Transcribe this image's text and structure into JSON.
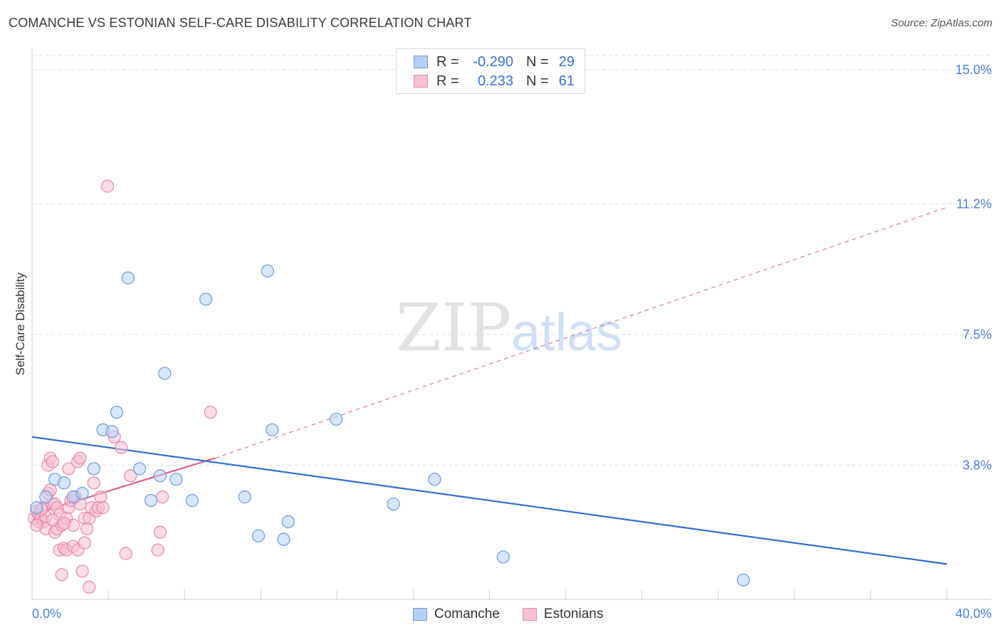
{
  "title": "COMANCHE VS ESTONIAN SELF-CARE DISABILITY CORRELATION CHART",
  "source": "Source: ZipAtlas.com",
  "watermark": {
    "zip": "ZIP",
    "atlas": "atlas"
  },
  "legend": {
    "comanche": {
      "r_label": "R =",
      "r_value": "-0.290",
      "n_label": "N =",
      "n_value": "29"
    },
    "estonians": {
      "r_label": "R =",
      "r_value": "0.233",
      "n_label": "N =",
      "n_value": "61"
    }
  },
  "bottom_legend": {
    "comanche": "Comanche",
    "estonians": "Estonians"
  },
  "colors": {
    "comanche_fill": "#b7d1f5",
    "comanche_stroke": "#6b9be0",
    "comanche_line": "#2f6fd0",
    "estonians_fill": "#f8c0d2",
    "estonians_stroke": "#e889a8",
    "estonians_line": "#e0608a",
    "grid": "#dcdcdc",
    "tick_text": "#4a7fd4"
  },
  "chart_data": {
    "type": "scatter",
    "title": "COMANCHE VS ESTONIAN SELF-CARE DISABILITY CORRELATION CHART",
    "xlabel": "",
    "ylabel": "Self-Care Disability",
    "xlim": [
      0,
      40
    ],
    "ylim": [
      0,
      15.6
    ],
    "x_tick_labels": [
      "0.0%",
      "40.0%"
    ],
    "y_ticks": [
      3.8,
      7.5,
      11.2,
      15.0
    ],
    "y_tick_labels": [
      "3.8%",
      "7.5%",
      "11.2%",
      "15.0%"
    ],
    "series": [
      {
        "name": "Comanche",
        "R": -0.29,
        "N": 29,
        "points": [
          [
            0.2,
            2.6
          ],
          [
            0.6,
            2.9
          ],
          [
            1.0,
            3.4
          ],
          [
            1.4,
            3.3
          ],
          [
            1.8,
            2.9
          ],
          [
            2.2,
            3.0
          ],
          [
            2.7,
            3.7
          ],
          [
            3.1,
            4.8
          ],
          [
            3.5,
            4.75
          ],
          [
            3.7,
            5.3
          ],
          [
            4.2,
            9.1
          ],
          [
            4.7,
            3.7
          ],
          [
            5.2,
            2.8
          ],
          [
            5.6,
            3.5
          ],
          [
            5.8,
            6.4
          ],
          [
            6.3,
            3.4
          ],
          [
            7.0,
            2.8
          ],
          [
            7.6,
            8.5
          ],
          [
            9.3,
            2.9
          ],
          [
            9.9,
            1.8
          ],
          [
            10.3,
            9.3
          ],
          [
            10.5,
            4.8
          ],
          [
            11.0,
            1.7
          ],
          [
            11.2,
            2.2
          ],
          [
            13.3,
            5.1
          ],
          [
            15.8,
            2.7
          ],
          [
            17.6,
            3.4
          ],
          [
            20.6,
            1.2
          ],
          [
            31.1,
            0.55
          ]
        ],
        "trend": {
          "x0": 0,
          "y0": 4.6,
          "x1": 40,
          "y1": 1.0
        }
      },
      {
        "name": "Estonians",
        "R": 0.233,
        "N": 61,
        "points": [
          [
            0.1,
            2.3
          ],
          [
            0.2,
            2.5
          ],
          [
            0.3,
            2.2
          ],
          [
            0.3,
            2.4
          ],
          [
            0.4,
            2.3
          ],
          [
            0.5,
            2.6
          ],
          [
            0.5,
            2.2
          ],
          [
            0.6,
            2.0
          ],
          [
            0.6,
            2.35
          ],
          [
            0.7,
            3.0
          ],
          [
            0.7,
            3.8
          ],
          [
            0.8,
            4.0
          ],
          [
            0.8,
            3.1
          ],
          [
            0.9,
            3.9
          ],
          [
            0.9,
            2.7
          ],
          [
            1.0,
            2.7
          ],
          [
            1.0,
            1.9
          ],
          [
            1.1,
            2.0
          ],
          [
            1.1,
            2.6
          ],
          [
            1.2,
            2.4
          ],
          [
            1.2,
            1.4
          ],
          [
            1.3,
            2.1
          ],
          [
            1.3,
            0.7
          ],
          [
            1.4,
            1.45
          ],
          [
            1.5,
            1.4
          ],
          [
            1.5,
            2.3
          ],
          [
            1.6,
            3.7
          ],
          [
            1.6,
            2.6
          ],
          [
            1.7,
            2.8
          ],
          [
            1.8,
            2.1
          ],
          [
            1.8,
            1.5
          ],
          [
            1.9,
            2.9
          ],
          [
            2.0,
            3.9
          ],
          [
            2.0,
            1.4
          ],
          [
            2.1,
            4.0
          ],
          [
            2.1,
            2.7
          ],
          [
            2.2,
            0.8
          ],
          [
            2.3,
            1.6
          ],
          [
            2.3,
            2.3
          ],
          [
            2.4,
            2.0
          ],
          [
            2.5,
            2.3
          ],
          [
            2.5,
            0.35
          ],
          [
            2.6,
            2.6
          ],
          [
            2.7,
            3.3
          ],
          [
            2.8,
            2.5
          ],
          [
            2.9,
            2.6
          ],
          [
            3.0,
            2.9
          ],
          [
            3.1,
            2.6
          ],
          [
            3.3,
            11.7
          ],
          [
            3.6,
            4.6
          ],
          [
            3.9,
            4.3
          ],
          [
            4.1,
            1.3
          ],
          [
            4.3,
            3.5
          ],
          [
            5.5,
            1.4
          ],
          [
            5.6,
            1.9
          ],
          [
            5.7,
            2.9
          ],
          [
            7.8,
            5.3
          ],
          [
            0.4,
            2.55
          ],
          [
            0.9,
            2.25
          ],
          [
            1.4,
            2.15
          ],
          [
            0.2,
            2.1
          ]
        ],
        "trend": {
          "x0": 0,
          "y0": 2.4,
          "x1": 8.0,
          "y1": 4.0,
          "dash_to_x": 40,
          "dash_to_y": 11.1
        }
      }
    ]
  }
}
